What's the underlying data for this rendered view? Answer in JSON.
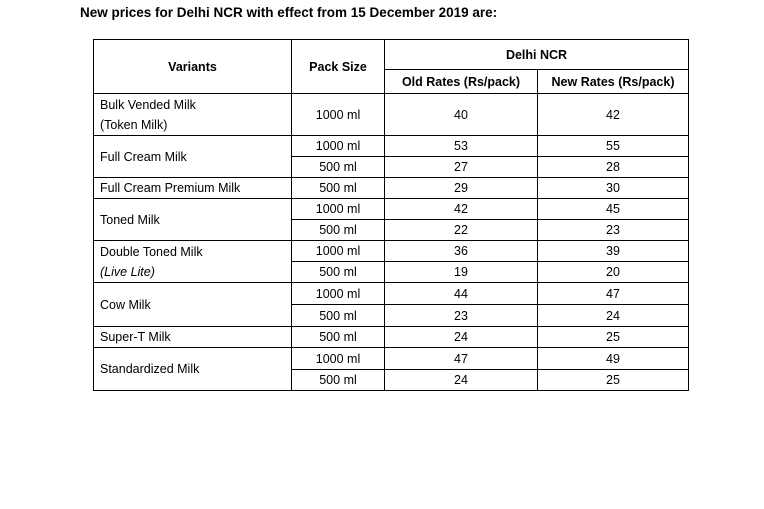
{
  "heading": "New prices for Delhi NCR with effect from 15 December 2019 are:",
  "table": {
    "col_variants": "Variants",
    "col_pack": "Pack Size",
    "col_region": "Delhi NCR",
    "col_old": "Old Rates (Rs/pack)",
    "col_new": "New Rates (Rs/pack)",
    "rows": [
      {
        "variant": "Bulk Vended Milk",
        "variant_sub": "(Token Milk)",
        "packs": [
          {
            "size": "1000 ml",
            "old": "40",
            "new": "42"
          }
        ]
      },
      {
        "variant": "Full Cream Milk",
        "packs": [
          {
            "size": "1000 ml",
            "old": "53",
            "new": "55"
          },
          {
            "size": "500 ml",
            "old": "27",
            "new": "28"
          }
        ]
      },
      {
        "variant": "Full Cream Premium Milk",
        "packs": [
          {
            "size": "500 ml",
            "old": "29",
            "new": "30"
          }
        ]
      },
      {
        "variant": "Toned Milk",
        "packs": [
          {
            "size": "1000 ml",
            "old": "42",
            "new": "45"
          },
          {
            "size": "500 ml",
            "old": "22",
            "new": "23"
          }
        ]
      },
      {
        "variant": "Double Toned Milk",
        "variant_sub": "(Live Lite)",
        "packs": [
          {
            "size": "1000 ml",
            "old": "36",
            "new": "39"
          },
          {
            "size": "500 ml",
            "old": "19",
            "new": "20"
          }
        ]
      },
      {
        "variant": "Cow Milk",
        "packs": [
          {
            "size": "1000 ml",
            "old": "44",
            "new": "47"
          },
          {
            "size": "500 ml",
            "old": "23",
            "new": "24"
          }
        ]
      },
      {
        "variant": "Super-T Milk",
        "packs": [
          {
            "size": "500 ml",
            "old": "24",
            "new": "25"
          }
        ]
      },
      {
        "variant": "Standardized Milk",
        "packs": [
          {
            "size": "1000 ml",
            "old": "47",
            "new": "49"
          },
          {
            "size": "500 ml",
            "old": "24",
            "new": "25"
          }
        ]
      }
    ]
  }
}
